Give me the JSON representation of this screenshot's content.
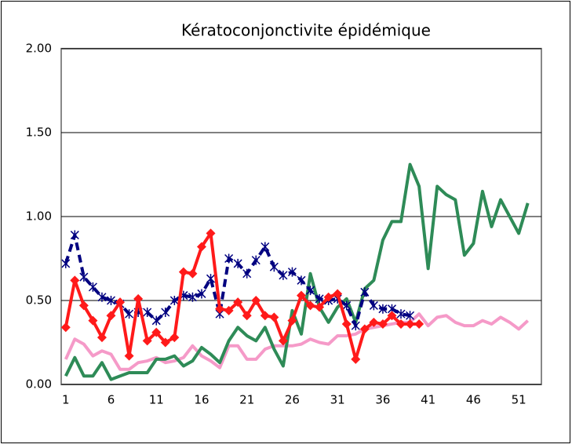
{
  "chart_data": {
    "type": "line",
    "title": "Kératoconjonctivite épidémique",
    "categories": [
      1,
      null,
      null,
      null,
      null,
      6,
      null,
      null,
      null,
      null,
      11,
      null,
      null,
      null,
      null,
      16,
      null,
      null,
      null,
      null,
      21,
      null,
      null,
      null,
      null,
      26,
      null,
      null,
      null,
      null,
      31,
      null,
      null,
      null,
      null,
      36,
      null,
      null,
      null,
      null,
      41,
      null,
      null,
      null,
      null,
      46,
      null,
      null,
      null,
      null,
      51,
      null,
      null
    ],
    "ylim": [
      0,
      2
    ],
    "yticks": [
      {
        "value": 0,
        "label": "0.00"
      },
      {
        "value": 0.5,
        "label": "0.50"
      },
      {
        "value": 1,
        "label": "1.00"
      },
      {
        "value": 1.5,
        "label": "1.50"
      },
      {
        "value": 2,
        "label": "2.00"
      }
    ],
    "grid": true,
    "series": [
      {
        "color": "#f59ac8",
        "style": "solid",
        "marker": "none",
        "values": [
          0.15,
          0.27,
          0.24,
          0.17,
          0.2,
          0.18,
          0.09,
          0.09,
          0.13,
          0.14,
          0.16,
          0.13,
          0.14,
          0.16,
          0.23,
          0.17,
          0.14,
          0.1,
          0.23,
          0.23,
          0.15,
          0.15,
          0.21,
          0.23,
          0.23,
          0.23,
          0.24,
          0.27,
          0.25,
          0.24,
          0.29,
          0.29,
          0.3,
          0.33,
          0.34,
          0.35,
          0.36,
          0.37,
          0.37,
          0.42,
          0.35,
          0.4,
          0.41,
          0.37,
          0.35,
          0.35,
          0.38,
          0.36,
          0.4,
          0.37,
          0.33,
          0.38,
          null
        ]
      },
      {
        "color": "#2e8b57",
        "style": "solid",
        "marker": "none",
        "values": [
          0.05,
          0.16,
          0.05,
          0.05,
          0.13,
          0.03,
          0.05,
          0.07,
          0.07,
          0.07,
          0.15,
          0.15,
          0.17,
          0.11,
          0.14,
          0.22,
          0.18,
          0.13,
          0.26,
          0.34,
          0.29,
          0.26,
          0.34,
          0.21,
          0.11,
          0.44,
          0.3,
          0.66,
          0.46,
          0.37,
          0.46,
          0.51,
          0.37,
          0.57,
          0.62,
          0.86,
          0.97,
          0.97,
          1.31,
          1.18,
          0.69,
          1.18,
          1.13,
          1.1,
          0.77,
          0.84,
          1.15,
          0.94,
          1.1,
          1.0,
          0.9,
          1.08,
          null
        ]
      },
      {
        "color": "#000080",
        "style": "dashed",
        "marker": "star",
        "values": [
          0.72,
          0.89,
          0.64,
          0.58,
          0.52,
          0.5,
          0.48,
          0.42,
          0.43,
          0.43,
          0.38,
          0.43,
          0.5,
          0.53,
          0.52,
          0.54,
          0.63,
          0.42,
          0.75,
          0.72,
          0.66,
          0.74,
          0.82,
          0.7,
          0.65,
          0.67,
          0.62,
          0.56,
          0.51,
          0.5,
          0.51,
          0.47,
          0.35,
          0.55,
          0.47,
          0.45,
          0.45,
          0.42,
          0.41,
          null,
          null,
          null,
          null,
          null,
          null,
          null,
          null,
          null,
          null,
          null,
          null,
          null,
          null
        ]
      },
      {
        "color": "#ff1a1a",
        "style": "solid",
        "marker": "diamond",
        "values": [
          0.34,
          0.62,
          0.47,
          0.38,
          0.28,
          0.41,
          0.49,
          0.17,
          0.51,
          0.26,
          0.31,
          0.25,
          0.28,
          0.67,
          0.66,
          0.82,
          0.9,
          0.45,
          0.44,
          0.49,
          0.41,
          0.5,
          0.41,
          0.4,
          0.26,
          0.38,
          0.53,
          0.47,
          0.46,
          0.52,
          0.54,
          0.36,
          0.15,
          0.33,
          0.37,
          0.36,
          0.41,
          0.36,
          0.36,
          0.36,
          null,
          null,
          null,
          null,
          null,
          null,
          null,
          null,
          null,
          null,
          null,
          null,
          null
        ]
      }
    ]
  }
}
